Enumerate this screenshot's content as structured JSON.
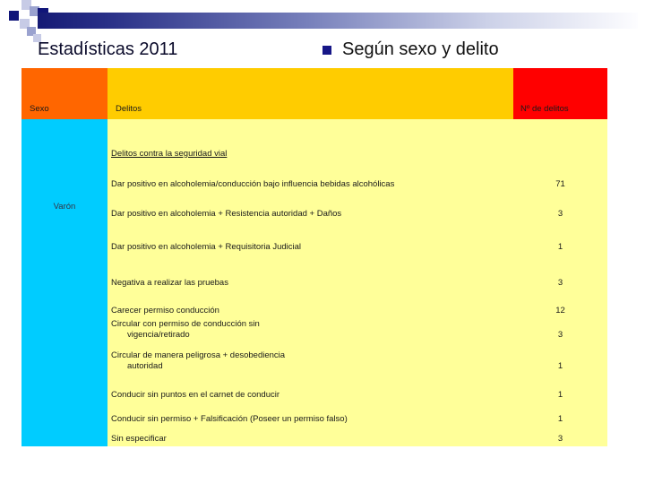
{
  "slide": {
    "title": "Estadísticas 2011",
    "bullet_text": "Según sexo y delito"
  },
  "colors": {
    "header_sexo_bg": "#FF6600",
    "header_delitos_bg": "#FFCC00",
    "header_num_bg": "#FF0000",
    "sexo_column_bg": "#00CCFF",
    "rows_bg": "#FFFF99",
    "accent_navy": "#101579"
  },
  "table": {
    "headers": {
      "sexo": "Sexo",
      "delitos": "Delitos",
      "num_delitos": "Nº de delitos"
    },
    "sexo_value": "Varón",
    "rows": [
      {
        "lines": [
          "Delitos contra la seguridad vial"
        ],
        "value": "",
        "underline": true
      },
      {
        "lines": [
          "Dar positivo en alcoholemia/conducción bajo influencia bebidas alcohólicas"
        ],
        "value": "71"
      },
      {
        "lines": [
          "Dar positivo en alcoholemia + Resistencia autoridad + Daños"
        ],
        "value": "3"
      },
      {
        "lines": [
          "Dar positivo en alcoholemia + Requisitoria Judicial"
        ],
        "value": "1"
      },
      {
        "lines": [
          "Negativa a realizar las pruebas"
        ],
        "value": "3"
      },
      {
        "lines": [
          "Carecer permiso conducción"
        ],
        "value": "12"
      },
      {
        "lines": [
          "Circular con permiso de conducción sin",
          "vigencia/retirado"
        ],
        "value": "3"
      },
      {
        "lines": [
          "Circular de manera peligrosa + desobediencia",
          "autoridad"
        ],
        "value": "1"
      },
      {
        "lines": [
          "Conducir sin puntos en el carnet de conducir"
        ],
        "value": "1"
      },
      {
        "lines": [
          "Conducir sin permiso + Falsificación (Poseer un permiso falso)"
        ],
        "value": "1"
      },
      {
        "lines": [
          "Sin especificar"
        ],
        "value": "3"
      }
    ]
  }
}
